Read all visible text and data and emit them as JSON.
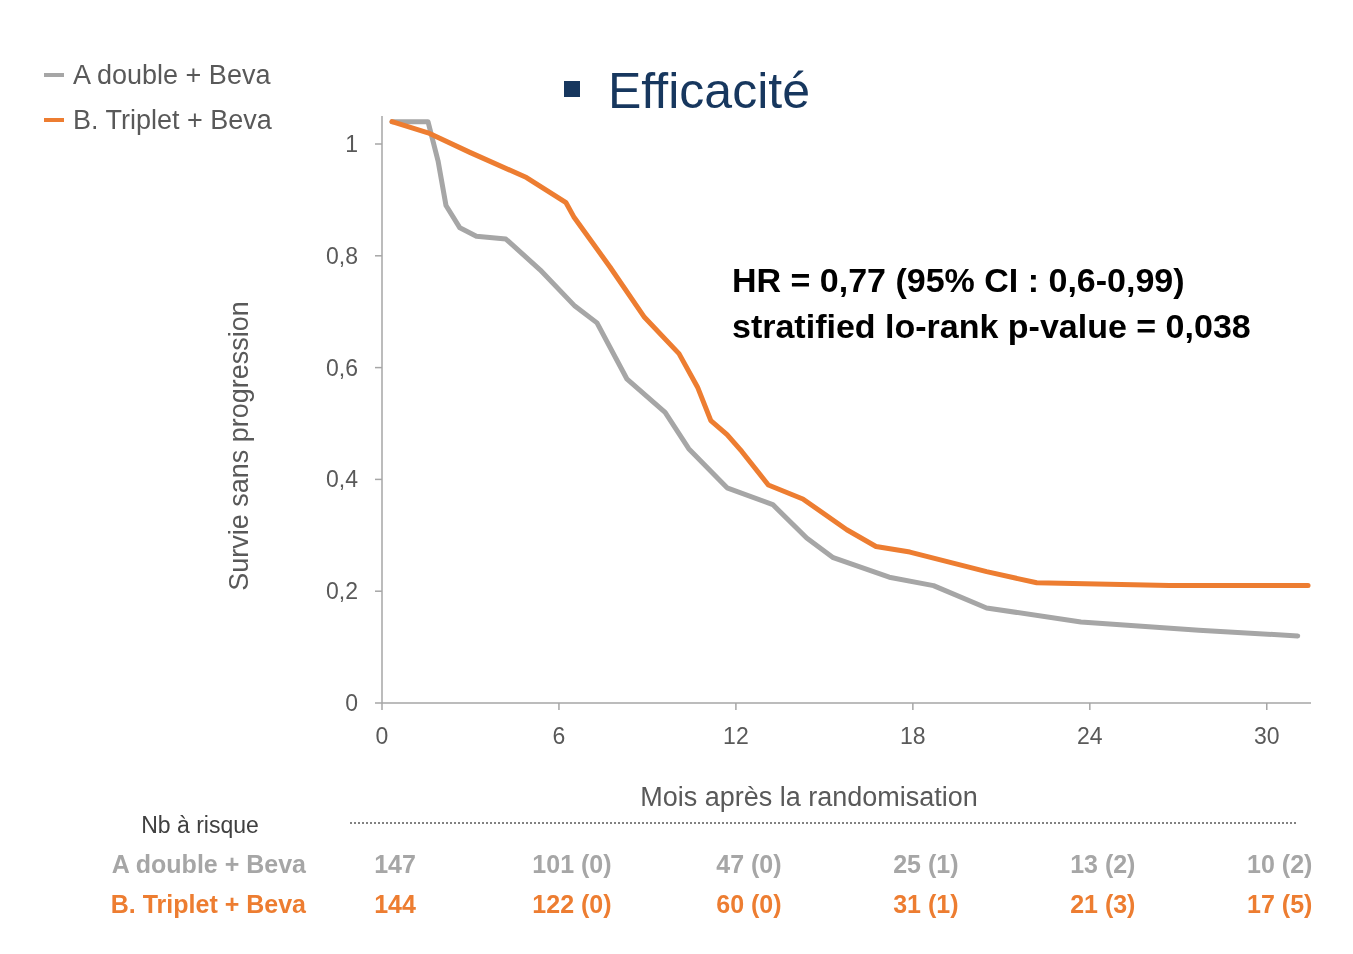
{
  "chart_data": {
    "type": "line",
    "title": "Efficacité",
    "xlabel": "Mois après la randomisation",
    "ylabel": "Survie sans progression",
    "xlim": [
      0,
      31.5
    ],
    "xticks": [
      0,
      6,
      12,
      18,
      24,
      30
    ],
    "ylim": [
      0,
      1.05
    ],
    "yticks": [
      0,
      {
        "value": 0.2,
        "label": "0,2"
      },
      {
        "value": 0.4,
        "label": "0,4"
      },
      {
        "value": 0.6,
        "label": "0,6"
      },
      {
        "value": 0.8,
        "label": "0,8"
      },
      1
    ],
    "legend": "top left",
    "grid": false,
    "series": [
      {
        "name": "A double + Beva",
        "color": "#a6a6a6",
        "x": [
          0.34,
          1.56,
          1.9,
          2.17,
          2.64,
          3.2,
          4.2,
          5.36,
          6.54,
          7.29,
          8.3,
          9.6,
          10.4,
          11.7,
          13.25,
          14.4,
          15.3,
          17.2,
          18.7,
          20.5,
          23.7,
          27.7,
          31.05
        ],
        "values": [
          1.04,
          1.04,
          0.97,
          0.89,
          0.85,
          0.835,
          0.83,
          0.775,
          0.71,
          0.68,
          0.58,
          0.52,
          0.455,
          0.385,
          0.355,
          0.295,
          0.26,
          0.225,
          0.21,
          0.17,
          0.145,
          0.13,
          0.12
        ]
      },
      {
        "name": "B. Triplet + Beva",
        "color": "#ed7d31",
        "x": [
          0.34,
          1.56,
          2.98,
          4.9,
          6.24,
          6.5,
          7.73,
          8.9,
          10.07,
          10.7,
          11.15,
          11.7,
          12.2,
          13.1,
          14.27,
          15.76,
          16.75,
          17.9,
          20.5,
          22.2,
          26.7,
          31.4
        ],
        "values": [
          1.04,
          1.02,
          0.985,
          0.94,
          0.895,
          0.87,
          0.78,
          0.69,
          0.625,
          0.565,
          0.505,
          0.48,
          0.45,
          0.39,
          0.365,
          0.31,
          0.28,
          0.27,
          0.235,
          0.215,
          0.21,
          0.21
        ]
      }
    ],
    "annotations": [
      "HR = 0,77 (95% CI : 0,6-0,99)",
      "stratified lo-rank p-value = 0,038",
      "Nb à risque",
      "A double + Beva",
      "147",
      "101 (0)",
      "47 (0)",
      "25 (1)",
      "13 (2)",
      "10 (2)",
      "B. Triplet + Beva",
      "144",
      "122 (0)",
      "60 (0)",
      "31 (1)",
      "21 (3)",
      "17 (5)"
    ]
  }
}
